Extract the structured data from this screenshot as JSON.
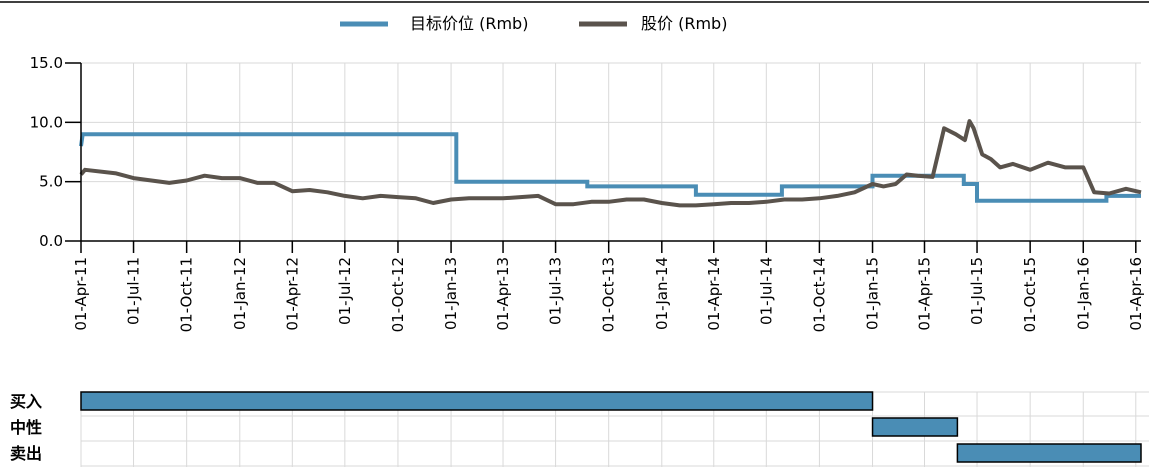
{
  "colors": {
    "target": "#4a8db5",
    "price": "#5a534c",
    "bar": "#4a8db5",
    "grid": "#d9d9d9"
  },
  "chart_data": [
    {
      "type": "line",
      "legend": [
        "目标价位 (Rmb)",
        "股价 (Rmb)"
      ],
      "legend_position": "top-center",
      "grid": true,
      "xlim": [
        "2011-04-01",
        "2016-04-10"
      ],
      "ylim": [
        0,
        15
      ],
      "y_ticks": [
        "0.0",
        "5.0",
        "10.0",
        "15.0"
      ],
      "x_ticks": [
        {
          "date": "2011-04-01",
          "label": "01-Apr-11"
        },
        {
          "date": "2011-07-01",
          "label": "01-Jul-11"
        },
        {
          "date": "2011-10-01",
          "label": "01-Oct-11"
        },
        {
          "date": "2012-01-01",
          "label": "01-Jan-12"
        },
        {
          "date": "2012-04-01",
          "label": "01-Apr-12"
        },
        {
          "date": "2012-07-01",
          "label": "01-Jul-12"
        },
        {
          "date": "2012-10-01",
          "label": "01-Oct-12"
        },
        {
          "date": "2013-01-01",
          "label": "01-Jan-13"
        },
        {
          "date": "2013-04-01",
          "label": "01-Apr-13"
        },
        {
          "date": "2013-07-01",
          "label": "01-Jul-13"
        },
        {
          "date": "2013-10-01",
          "label": "01-Oct-13"
        },
        {
          "date": "2014-01-01",
          "label": "01-Jan-14"
        },
        {
          "date": "2014-04-01",
          "label": "01-Apr-14"
        },
        {
          "date": "2014-07-01",
          "label": "01-Jul-14"
        },
        {
          "date": "2014-10-01",
          "label": "01-Oct-14"
        },
        {
          "date": "2015-01-01",
          "label": "01-Jan-15"
        },
        {
          "date": "2015-04-01",
          "label": "01-Apr-15"
        },
        {
          "date": "2015-07-01",
          "label": "01-Jul-15"
        },
        {
          "date": "2015-10-01",
          "label": "01-Oct-15"
        },
        {
          "date": "2016-01-01",
          "label": "01-Jan-16"
        },
        {
          "date": "2016-04-01",
          "label": "01-Apr-16"
        }
      ],
      "series": [
        {
          "name": "目标价位 (Rmb)",
          "step": true,
          "points": [
            [
              "2011-04-01",
              8.0
            ],
            [
              "2011-04-04",
              9.0
            ],
            [
              "2013-01-10",
              9.0
            ],
            [
              "2013-01-10",
              5.0
            ],
            [
              "2013-08-25",
              5.0
            ],
            [
              "2013-08-25",
              4.6
            ],
            [
              "2014-03-01",
              4.6
            ],
            [
              "2014-03-01",
              3.9
            ],
            [
              "2014-07-28",
              3.9
            ],
            [
              "2014-07-28",
              4.6
            ],
            [
              "2015-01-01",
              4.6
            ],
            [
              "2015-01-01",
              5.5
            ],
            [
              "2015-06-08",
              5.5
            ],
            [
              "2015-06-08",
              4.8
            ],
            [
              "2015-07-01",
              4.8
            ],
            [
              "2015-07-01",
              3.4
            ],
            [
              "2016-02-10",
              3.4
            ],
            [
              "2016-02-10",
              3.8
            ],
            [
              "2016-04-10",
              3.8
            ]
          ]
        },
        {
          "name": "股价 (Rmb)",
          "points": [
            [
              "2011-04-01",
              5.6
            ],
            [
              "2011-04-08",
              6.0
            ],
            [
              "2011-06-01",
              5.7
            ],
            [
              "2011-07-01",
              5.3
            ],
            [
              "2011-08-01",
              5.1
            ],
            [
              "2011-09-01",
              4.9
            ],
            [
              "2011-10-01",
              5.1
            ],
            [
              "2011-11-01",
              5.5
            ],
            [
              "2011-12-01",
              5.3
            ],
            [
              "2012-01-01",
              5.3
            ],
            [
              "2012-02-01",
              4.9
            ],
            [
              "2012-03-01",
              4.9
            ],
            [
              "2012-04-01",
              4.2
            ],
            [
              "2012-05-01",
              4.3
            ],
            [
              "2012-06-01",
              4.1
            ],
            [
              "2012-07-01",
              3.8
            ],
            [
              "2012-08-01",
              3.6
            ],
            [
              "2012-09-01",
              3.8
            ],
            [
              "2012-10-01",
              3.7
            ],
            [
              "2012-11-01",
              3.6
            ],
            [
              "2012-12-01",
              3.2
            ],
            [
              "2013-01-01",
              3.5
            ],
            [
              "2013-02-01",
              3.6
            ],
            [
              "2013-03-01",
              3.6
            ],
            [
              "2013-04-01",
              3.6
            ],
            [
              "2013-05-01",
              3.7
            ],
            [
              "2013-06-01",
              3.8
            ],
            [
              "2013-07-01",
              3.1
            ],
            [
              "2013-08-01",
              3.1
            ],
            [
              "2013-09-01",
              3.3
            ],
            [
              "2013-10-01",
              3.3
            ],
            [
              "2013-11-01",
              3.5
            ],
            [
              "2013-12-01",
              3.5
            ],
            [
              "2014-01-01",
              3.2
            ],
            [
              "2014-02-01",
              3.0
            ],
            [
              "2014-03-01",
              3.0
            ],
            [
              "2014-04-01",
              3.1
            ],
            [
              "2014-05-01",
              3.2
            ],
            [
              "2014-06-01",
              3.2
            ],
            [
              "2014-07-01",
              3.3
            ],
            [
              "2014-08-01",
              3.5
            ],
            [
              "2014-09-01",
              3.5
            ],
            [
              "2014-10-01",
              3.6
            ],
            [
              "2014-11-01",
              3.8
            ],
            [
              "2014-12-01",
              4.1
            ],
            [
              "2015-01-01",
              4.8
            ],
            [
              "2015-01-20",
              4.6
            ],
            [
              "2015-02-10",
              4.8
            ],
            [
              "2015-03-01",
              5.6
            ],
            [
              "2015-03-20",
              5.5
            ],
            [
              "2015-04-15",
              5.4
            ],
            [
              "2015-05-05",
              9.5
            ],
            [
              "2015-05-25",
              9.0
            ],
            [
              "2015-06-10",
              8.5
            ],
            [
              "2015-06-18",
              10.1
            ],
            [
              "2015-06-25",
              9.5
            ],
            [
              "2015-07-10",
              7.3
            ],
            [
              "2015-07-25",
              6.9
            ],
            [
              "2015-08-10",
              6.2
            ],
            [
              "2015-09-01",
              6.5
            ],
            [
              "2015-10-01",
              6.0
            ],
            [
              "2015-11-01",
              6.6
            ],
            [
              "2015-12-01",
              6.2
            ],
            [
              "2016-01-01",
              6.2
            ],
            [
              "2016-01-20",
              4.1
            ],
            [
              "2016-02-15",
              4.0
            ],
            [
              "2016-03-15",
              4.4
            ],
            [
              "2016-04-10",
              4.1
            ]
          ]
        }
      ]
    },
    {
      "type": "gantt",
      "categories": [
        "买入",
        "中性",
        "卖出"
      ],
      "bars": [
        {
          "category": "买入",
          "start": "2011-04-01",
          "end": "2015-01-01"
        },
        {
          "category": "中性",
          "start": "2015-01-01",
          "end": "2015-05-28"
        },
        {
          "category": "卖出",
          "start": "2015-05-28",
          "end": "2016-04-10"
        }
      ]
    }
  ]
}
